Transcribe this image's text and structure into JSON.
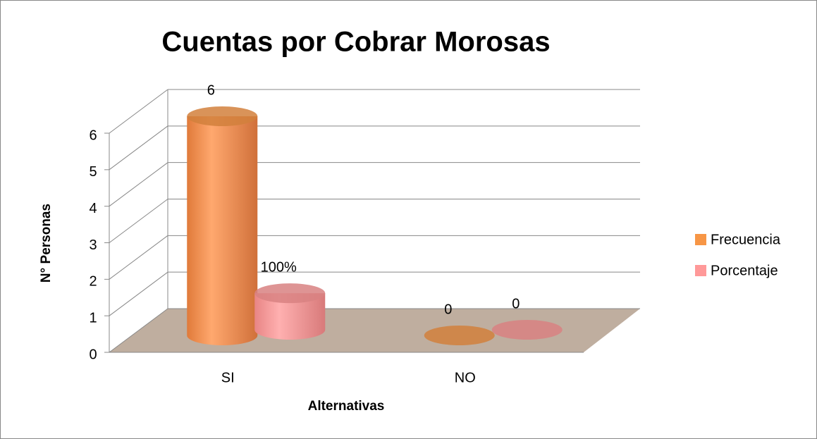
{
  "chart_data": {
    "type": "bar3d_cylinder",
    "title": "Cuentas por Cobrar Morosas",
    "categories": [
      "SI",
      "NO"
    ],
    "series": [
      {
        "name": "Frecuencia",
        "color": "#f79646",
        "values": [
          6,
          0
        ]
      },
      {
        "name": "Porcentaje",
        "color": "#ff9999",
        "values": [
          1,
          0
        ],
        "value_labels": [
          "100%",
          "0"
        ]
      }
    ],
    "y_label": "N° Personas",
    "x_label": "Alternativas",
    "ylim": [
      0,
      6
    ],
    "yticks": [
      0,
      1,
      2,
      3,
      4,
      5,
      6
    ],
    "grid": true,
    "legend": "right"
  }
}
